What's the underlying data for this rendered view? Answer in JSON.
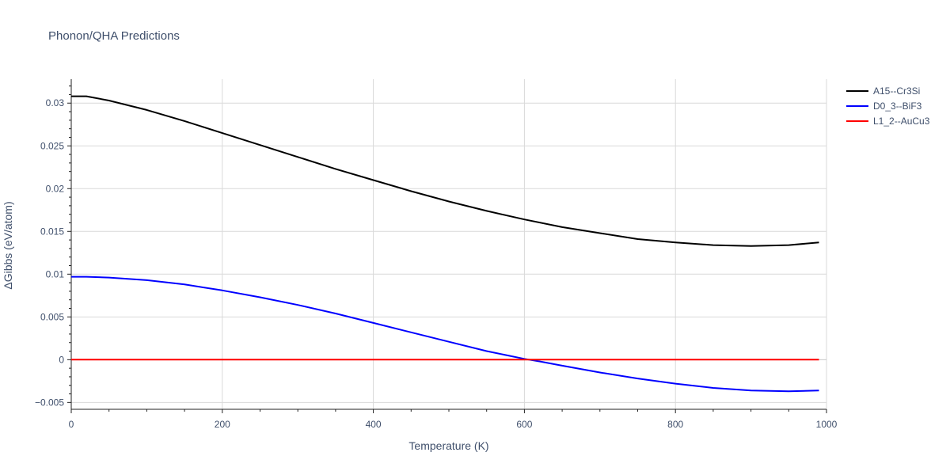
{
  "chart_data": {
    "type": "line",
    "title": "Phonon/QHA Predictions",
    "xlabel": "Temperature (K)",
    "ylabel": "ΔGibbs (eV/atom)",
    "xlim": [
      0,
      1000
    ],
    "ylim": [
      -0.0058,
      0.0328
    ],
    "x_ticks": [
      0,
      200,
      400,
      600,
      800,
      1000
    ],
    "x_tick_labels": [
      "0",
      "200",
      "400",
      "600",
      "800",
      "1000"
    ],
    "y_ticks": [
      -0.005,
      0,
      0.005,
      0.01,
      0.015,
      0.02,
      0.025,
      0.03
    ],
    "y_tick_labels": [
      "−0.005",
      "0",
      "0.005",
      "0.01",
      "0.015",
      "0.02",
      "0.025",
      "0.03"
    ],
    "grid": true,
    "legend_position": "top-right",
    "series": [
      {
        "name": "A15--Cr3Si",
        "color": "#000000",
        "x": [
          0,
          20,
          50,
          100,
          150,
          200,
          250,
          300,
          350,
          400,
          450,
          500,
          550,
          600,
          650,
          700,
          750,
          800,
          850,
          900,
          950,
          990
        ],
        "y": [
          0.0308,
          0.0308,
          0.0303,
          0.0292,
          0.0279,
          0.0265,
          0.0251,
          0.0237,
          0.0223,
          0.021,
          0.0197,
          0.0185,
          0.0174,
          0.0164,
          0.0155,
          0.0148,
          0.0141,
          0.0137,
          0.0134,
          0.0133,
          0.0134,
          0.0137
        ]
      },
      {
        "name": "D0_3--BiF3",
        "color": "#0000ff",
        "x": [
          0,
          20,
          50,
          100,
          150,
          200,
          250,
          300,
          350,
          400,
          450,
          500,
          550,
          600,
          620,
          650,
          700,
          750,
          800,
          850,
          900,
          950,
          990
        ],
        "y": [
          0.0097,
          0.0097,
          0.0096,
          0.0093,
          0.0088,
          0.0081,
          0.0073,
          0.0064,
          0.0054,
          0.0043,
          0.0032,
          0.0021,
          0.001,
          0.0001,
          -0.0002,
          -0.0007,
          -0.0015,
          -0.0022,
          -0.0028,
          -0.0033,
          -0.0036,
          -0.0037,
          -0.0036
        ]
      },
      {
        "name": "L1_2--AuCu3",
        "color": "#ff0000",
        "x": [
          0,
          990
        ],
        "y": [
          0,
          0
        ]
      }
    ]
  }
}
